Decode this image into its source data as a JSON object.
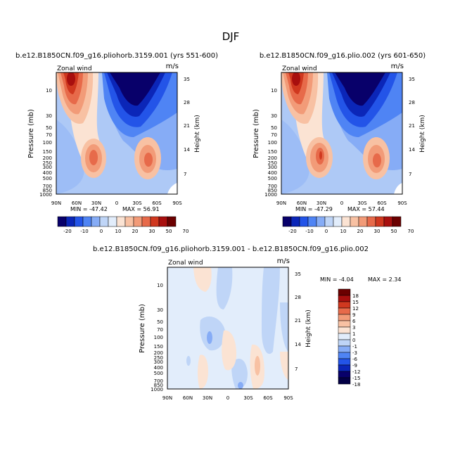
{
  "figure_title": "DJF",
  "field_label": "Zonal wind",
  "units": "m/s",
  "chart_data": [
    {
      "type": "heatmap",
      "title": "b.e12.B1850CN.f09_g16.pliohorb.3159.001 (yrs 551-600)",
      "variable": "Zonal wind",
      "units": "m/s",
      "x_ticks": [
        "90N",
        "60N",
        "30N",
        "0",
        "30S",
        "60S",
        "90S"
      ],
      "y_ticks": [
        "10",
        "30",
        "50",
        "70",
        "100",
        "150",
        "200",
        "250",
        "300",
        "400",
        "500",
        "700",
        "850",
        "1000"
      ],
      "ylabel": "Pressure (mb)",
      "height_ticks": [
        "35",
        "28",
        "21",
        "14",
        "7"
      ],
      "height_label": "Height (km)",
      "min_label": "MIN = -47.42",
      "max_label": "MAX = 56.91",
      "min": -47.42,
      "max": 56.91,
      "colorbar_labels": [
        "-20",
        "-10",
        "0",
        "10",
        "20",
        "30",
        "50",
        "70"
      ]
    },
    {
      "type": "heatmap",
      "title": "b.e12.B1850CN.f09_g16.plio.002 (yrs 601-650)",
      "variable": "Zonal wind",
      "units": "m/s",
      "x_ticks": [
        "90N",
        "60N",
        "30N",
        "0",
        "30S",
        "60S",
        "90S"
      ],
      "y_ticks": [
        "10",
        "30",
        "50",
        "70",
        "100",
        "150",
        "200",
        "250",
        "300",
        "400",
        "500",
        "700",
        "850",
        "1000"
      ],
      "ylabel": "Pressure (mb)",
      "height_ticks": [
        "35",
        "28",
        "21",
        "14",
        "7"
      ],
      "height_label": "Height (km)",
      "min_label": "MIN = -47.29",
      "max_label": "MAX = 57.44",
      "min": -47.29,
      "max": 57.44,
      "colorbar_labels": [
        "-20",
        "-10",
        "0",
        "10",
        "20",
        "30",
        "50",
        "70"
      ]
    },
    {
      "type": "heatmap",
      "title": "b.e12.B1850CN.f09_g16.pliohorb.3159.001 - b.e12.B1850CN.f09_g16.plio.002",
      "variable": "Zonal wind",
      "units": "m/s",
      "x_ticks": [
        "90N",
        "60N",
        "30N",
        "0",
        "30S",
        "60S",
        "90S"
      ],
      "y_ticks": [
        "10",
        "30",
        "50",
        "70",
        "100",
        "150",
        "200",
        "250",
        "300",
        "400",
        "500",
        "700",
        "850",
        "1000"
      ],
      "ylabel": "Pressure (mb)",
      "height_ticks": [
        "35",
        "28",
        "21",
        "14",
        "7"
      ],
      "height_label": "Height (km)",
      "min_label": "MIN = -4.04",
      "max_label": "MAX = 2.34",
      "min": -4.04,
      "max": 2.34,
      "colorbar_labels": [
        "18",
        "15",
        "12",
        "9",
        "6",
        "3",
        "1",
        "0",
        "-1",
        "-3",
        "-6",
        "-9",
        "-12",
        "-15",
        "-18"
      ]
    }
  ],
  "palettes": {
    "abs": [
      "#08006a",
      "#0b26b8",
      "#2354e8",
      "#4f84f4",
      "#86acf6",
      "#bfd5f7",
      "#e2edfb",
      "#fbe3d3",
      "#f8c1a3",
      "#f29b78",
      "#e76a4a",
      "#d0381f",
      "#a80f0e",
      "#6b0000"
    ],
    "diff": [
      "#6b0000",
      "#a80f0e",
      "#d0381f",
      "#e76a4a",
      "#f29b78",
      "#f8c1a3",
      "#fbe3d3",
      "#e2edfb",
      "#bfd5f7",
      "#86acf6",
      "#4f84f4",
      "#2354e8",
      "#0b26b8",
      "#08006a",
      "#030045",
      "#1a1a80"
    ]
  }
}
